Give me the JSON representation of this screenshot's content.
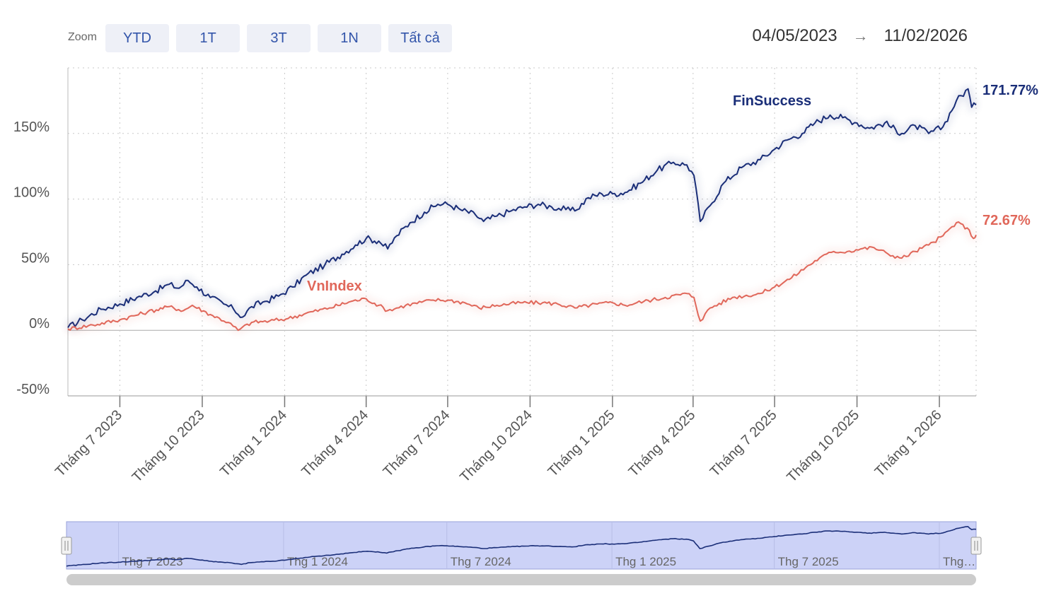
{
  "toolbar": {
    "zoom_label": "Zoom",
    "buttons": [
      "YTD",
      "1T",
      "3T",
      "1N",
      "Tất cả"
    ],
    "range_start": "04/05/2023",
    "range_arrow": "→",
    "range_end": "11/02/2026"
  },
  "colors": {
    "finsuccess": "#1a2e78",
    "vnindex": "#e0675a",
    "navigator_fill": "#ccd2f7",
    "grid": "#c8c8c8"
  },
  "chart_data": {
    "type": "line",
    "x_start": "2023-05-04",
    "x_end": "2026-02-11",
    "ylim": [
      -50,
      200
    ],
    "yticks": [
      "-50%",
      "0%",
      "50%",
      "100%",
      "150%"
    ],
    "ytick_values": [
      -50,
      0,
      50,
      100,
      150
    ],
    "xticks": [
      {
        "date": "2023-07-01",
        "label": "Tháng 7 2023"
      },
      {
        "date": "2023-10-01",
        "label": "Tháng 10 2023"
      },
      {
        "date": "2024-01-01",
        "label": "Tháng 1 2024"
      },
      {
        "date": "2024-04-01",
        "label": "Tháng 4 2024"
      },
      {
        "date": "2024-07-01",
        "label": "Tháng 7 2024"
      },
      {
        "date": "2024-10-01",
        "label": "Tháng 10 2024"
      },
      {
        "date": "2025-01-01",
        "label": "Tháng 1 2025"
      },
      {
        "date": "2025-04-01",
        "label": "Tháng 4 2025"
      },
      {
        "date": "2025-07-01",
        "label": "Tháng 7 2025"
      },
      {
        "date": "2025-10-01",
        "label": "Tháng 10 2025"
      },
      {
        "date": "2026-01-01",
        "label": "Tháng 1 2026"
      }
    ],
    "grid": true,
    "series": [
      {
        "name": "FinSuccess",
        "end_label": "171.77%",
        "points": [
          [
            "2023-05-04",
            2
          ],
          [
            "2023-05-20",
            8
          ],
          [
            "2023-06-10",
            16
          ],
          [
            "2023-07-01",
            20
          ],
          [
            "2023-07-20",
            25
          ],
          [
            "2023-08-10",
            30
          ],
          [
            "2023-08-25",
            35
          ],
          [
            "2023-09-05",
            32
          ],
          [
            "2023-09-15",
            38
          ],
          [
            "2023-09-25",
            33
          ],
          [
            "2023-10-10",
            25
          ],
          [
            "2023-10-25",
            20
          ],
          [
            "2023-11-05",
            16
          ],
          [
            "2023-11-15",
            10
          ],
          [
            "2023-11-25",
            18
          ],
          [
            "2023-12-10",
            22
          ],
          [
            "2023-12-25",
            26
          ],
          [
            "2024-01-10",
            33
          ],
          [
            "2024-01-25",
            42
          ],
          [
            "2024-02-15",
            50
          ],
          [
            "2024-03-05",
            58
          ],
          [
            "2024-03-20",
            65
          ],
          [
            "2024-04-01",
            70
          ],
          [
            "2024-04-15",
            68
          ],
          [
            "2024-04-25",
            62
          ],
          [
            "2024-05-05",
            72
          ],
          [
            "2024-05-20",
            82
          ],
          [
            "2024-06-05",
            90
          ],
          [
            "2024-06-20",
            96
          ],
          [
            "2024-07-01",
            96
          ],
          [
            "2024-07-15",
            92
          ],
          [
            "2024-08-01",
            88
          ],
          [
            "2024-08-10",
            83
          ],
          [
            "2024-08-25",
            87
          ],
          [
            "2024-09-10",
            91
          ],
          [
            "2024-09-25",
            94
          ],
          [
            "2024-10-10",
            96
          ],
          [
            "2024-10-25",
            94
          ],
          [
            "2024-11-10",
            92
          ],
          [
            "2024-11-20",
            91
          ],
          [
            "2024-12-05",
            101
          ],
          [
            "2024-12-20",
            104
          ],
          [
            "2025-01-01",
            104
          ],
          [
            "2025-01-15",
            105
          ],
          [
            "2025-02-01",
            112
          ],
          [
            "2025-02-20",
            122
          ],
          [
            "2025-03-10",
            128
          ],
          [
            "2025-03-25",
            126
          ],
          [
            "2025-04-02",
            118
          ],
          [
            "2025-04-09",
            83
          ],
          [
            "2025-04-20",
            95
          ],
          [
            "2025-05-05",
            112
          ],
          [
            "2025-05-25",
            124
          ],
          [
            "2025-06-15",
            130
          ],
          [
            "2025-07-01",
            138
          ],
          [
            "2025-07-15",
            145
          ],
          [
            "2025-08-01",
            150
          ],
          [
            "2025-08-15",
            158
          ],
          [
            "2025-09-01",
            164
          ],
          [
            "2025-09-15",
            162
          ],
          [
            "2025-10-01",
            158
          ],
          [
            "2025-10-15",
            154
          ],
          [
            "2025-11-01",
            158
          ],
          [
            "2025-11-20",
            150
          ],
          [
            "2025-12-05",
            156
          ],
          [
            "2025-12-20",
            150
          ],
          [
            "2026-01-05",
            155
          ],
          [
            "2026-01-20",
            175
          ],
          [
            "2026-02-02",
            184
          ],
          [
            "2026-02-06",
            170
          ],
          [
            "2026-02-11",
            171.77
          ]
        ]
      },
      {
        "name": "VnIndex",
        "end_label": "72.67%",
        "points": [
          [
            "2023-05-04",
            1
          ],
          [
            "2023-06-01",
            4
          ],
          [
            "2023-07-01",
            8
          ],
          [
            "2023-08-01",
            14
          ],
          [
            "2023-08-25",
            18
          ],
          [
            "2023-09-10",
            15
          ],
          [
            "2023-09-20",
            19
          ],
          [
            "2023-10-10",
            12
          ],
          [
            "2023-10-30",
            6
          ],
          [
            "2023-11-10",
            0
          ],
          [
            "2023-11-25",
            6
          ],
          [
            "2023-12-15",
            7
          ],
          [
            "2024-01-05",
            9
          ],
          [
            "2024-01-25",
            13
          ],
          [
            "2024-02-20",
            17
          ],
          [
            "2024-03-15",
            22
          ],
          [
            "2024-04-01",
            24
          ],
          [
            "2024-04-15",
            19
          ],
          [
            "2024-04-25",
            15
          ],
          [
            "2024-05-15",
            19
          ],
          [
            "2024-06-15",
            23
          ],
          [
            "2024-07-01",
            23
          ],
          [
            "2024-07-20",
            21
          ],
          [
            "2024-08-05",
            17
          ],
          [
            "2024-08-25",
            19
          ],
          [
            "2024-09-20",
            21
          ],
          [
            "2024-10-15",
            21
          ],
          [
            "2024-11-01",
            20
          ],
          [
            "2024-11-20",
            17
          ],
          [
            "2024-12-15",
            20
          ],
          [
            "2025-01-01",
            21
          ],
          [
            "2025-01-15",
            19
          ],
          [
            "2025-02-05",
            22
          ],
          [
            "2025-03-01",
            25
          ],
          [
            "2025-03-25",
            28
          ],
          [
            "2025-04-02",
            25
          ],
          [
            "2025-04-09",
            7
          ],
          [
            "2025-04-20",
            17
          ],
          [
            "2025-05-15",
            25
          ],
          [
            "2025-06-15",
            28
          ],
          [
            "2025-07-01",
            33
          ],
          [
            "2025-07-20",
            40
          ],
          [
            "2025-08-05",
            48
          ],
          [
            "2025-08-20",
            55
          ],
          [
            "2025-09-05",
            60
          ],
          [
            "2025-09-20",
            60
          ],
          [
            "2025-10-05",
            62
          ],
          [
            "2025-10-20",
            63
          ],
          [
            "2025-11-05",
            58
          ],
          [
            "2025-11-20",
            55
          ],
          [
            "2025-12-05",
            60
          ],
          [
            "2025-12-20",
            65
          ],
          [
            "2026-01-05",
            72
          ],
          [
            "2026-01-20",
            82
          ],
          [
            "2026-02-01",
            78
          ],
          [
            "2026-02-08",
            70
          ],
          [
            "2026-02-11",
            72.67
          ]
        ]
      }
    ],
    "navigator": {
      "labels": [
        {
          "date": "2023-07-01",
          "label": "Thg 7 2023"
        },
        {
          "date": "2024-01-01",
          "label": "Thg 1 2024"
        },
        {
          "date": "2024-07-01",
          "label": "Thg 7 2024"
        },
        {
          "date": "2025-01-01",
          "label": "Thg 1 2025"
        },
        {
          "date": "2025-07-01",
          "label": "Thg 7 2025"
        },
        {
          "date": "2026-01-01",
          "label": "Thg…"
        }
      ]
    }
  }
}
